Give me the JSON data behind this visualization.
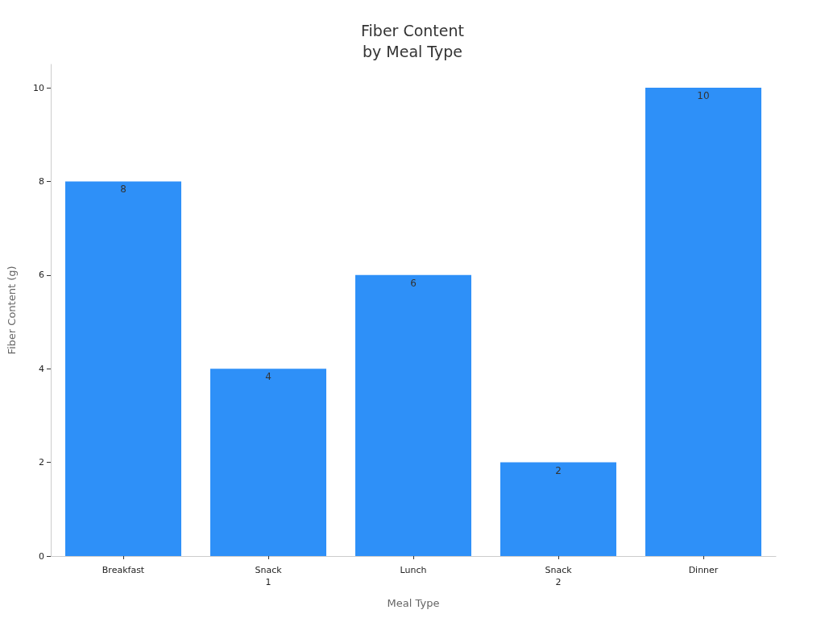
{
  "chart_data": {
    "type": "bar",
    "title": "Fiber Content\nby Meal Type",
    "xlabel": "Meal Type",
    "ylabel": "Fiber Content (g)",
    "categories": [
      "Breakfast",
      "Snack\n1",
      "Lunch",
      "Snack\n2",
      "Dinner"
    ],
    "values": [
      8,
      4,
      6,
      2,
      10
    ],
    "color": "#2e90f8",
    "ylim": [
      0,
      10.5
    ],
    "yticks": [
      0,
      2,
      4,
      6,
      8,
      10
    ],
    "grid": false,
    "data_labels": true
  }
}
